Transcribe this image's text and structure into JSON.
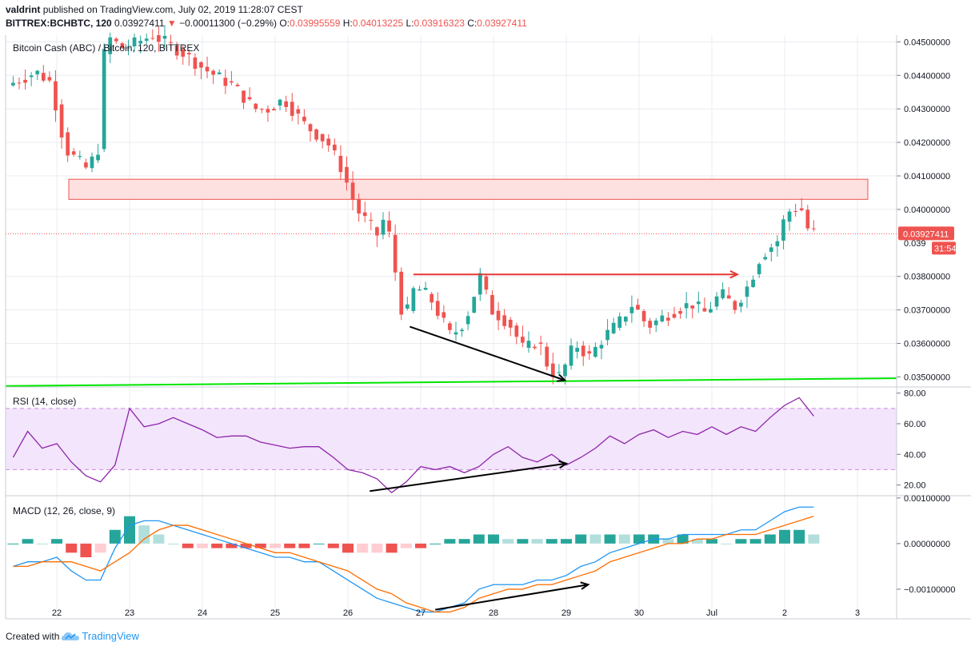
{
  "header": {
    "user": "valdrint",
    "published_text": "published on TradingView.com, July 02, 2019 11:28:07 CEST",
    "symbol": "BITTREX:BCHBTC, 120",
    "last_price": "0.03927411",
    "change": "−0.00011300 (−0.29%)",
    "ohlc": {
      "o_label": "O:",
      "o_value": "0.03995559",
      "h_label": "H:",
      "h_value": "0.04013225",
      "l_label": "L:",
      "l_value": "0.03916323",
      "c_label": "C:",
      "c_value": "0.03927411"
    }
  },
  "colors": {
    "up": "#26a69a",
    "down": "#ef5350",
    "grid": "#e9ecf1",
    "rsi_band": "#f3e5fb",
    "rsi_line": "#8e24aa",
    "macd_line": "#2196f3",
    "signal_line": "#ff6d00",
    "support": "#00e600",
    "resistance_zone": "#fde0e0",
    "price_tag": "#ef5350"
  },
  "chart_data": [
    {
      "type": "candlestick",
      "title": "Bitcoin Cash (ABC) / Bitcoin, 120, BITTREX",
      "y_ticks": [
        "0.04500000",
        "0.04400000",
        "0.04300000",
        "0.04200000",
        "0.04100000",
        "0.04000000",
        "0.03800000",
        "0.03700000",
        "0.03600000",
        "0.03500000"
      ],
      "ylim": [
        0.0347,
        0.0452
      ],
      "x_ticks": [
        "22",
        "23",
        "24",
        "25",
        "26",
        "27",
        "28",
        "29",
        "30",
        "Jul",
        "2",
        "3"
      ],
      "last_price_tag": "0.03927411",
      "countdown_tag": "31:54",
      "price_partial_tick": "0.039",
      "resistance_zone": {
        "from": 0.0403,
        "to": 0.0409
      },
      "support_line": {
        "start": 0.03473,
        "end": 0.03496
      },
      "horizontal_arrow": {
        "price": 0.03806,
        "from_day": 26.9,
        "to_day": 31.35
      },
      "down_arrow": {
        "from": [
          26.85,
          0.0365
        ],
        "to": [
          28.98,
          0.0349
        ]
      },
      "candles": []
    },
    {
      "type": "line",
      "title": "RSI (14, close)",
      "y_ticks": [
        "80.00",
        "60.00",
        "40.00",
        "20.00"
      ],
      "ylim": [
        13,
        84
      ],
      "band": [
        30,
        70
      ],
      "x_days": [
        21.4,
        21.6,
        21.8,
        22.0,
        22.2,
        22.4,
        22.6,
        22.8,
        23.0,
        23.2,
        23.4,
        23.6,
        23.8,
        24.0,
        24.2,
        24.4,
        24.6,
        24.8,
        25.0,
        25.2,
        25.4,
        25.6,
        25.8,
        26.0,
        26.2,
        26.4,
        26.6,
        26.8,
        27.0,
        27.2,
        27.4,
        27.6,
        27.8,
        28.0,
        28.2,
        28.4,
        28.6,
        28.8,
        29.0,
        29.2,
        29.4,
        29.6,
        29.8,
        30.0,
        30.2,
        30.4,
        30.6,
        30.8,
        31.0,
        31.2,
        31.4,
        31.6,
        31.8,
        32.0,
        32.2,
        32.4
      ],
      "values": [
        38,
        55,
        44,
        47,
        35,
        26,
        22,
        33,
        70,
        58,
        60,
        64,
        60,
        56,
        51,
        52,
        52,
        48,
        46,
        44,
        45,
        45,
        38,
        30,
        28,
        24,
        15,
        22,
        32,
        30,
        32,
        28,
        32,
        40,
        45,
        38,
        35,
        40,
        33,
        38,
        44,
        52,
        47,
        53,
        56,
        51,
        55,
        53,
        58,
        53,
        58,
        55,
        64,
        72,
        77,
        65
      ],
      "trend_arrow": {
        "from": [
          26.3,
          16
        ],
        "to": [
          29.0,
          34
        ]
      }
    },
    {
      "type": "line",
      "title": "MACD (12, 26, close, 9)",
      "y_ticks": [
        "0.00100000",
        "0.00000000",
        "−0.00100000"
      ],
      "ylim": [
        -0.00165,
        0.00105
      ],
      "x_days": [
        21.4,
        21.6,
        21.8,
        22.0,
        22.2,
        22.4,
        22.6,
        22.8,
        23.0,
        23.2,
        23.4,
        23.6,
        23.8,
        24.0,
        24.2,
        24.4,
        24.6,
        24.8,
        25.0,
        25.2,
        25.4,
        25.6,
        25.8,
        26.0,
        26.2,
        26.4,
        26.6,
        26.8,
        27.0,
        27.2,
        27.4,
        27.6,
        27.8,
        28.0,
        28.2,
        28.4,
        28.6,
        28.8,
        29.0,
        29.2,
        29.4,
        29.6,
        29.8,
        30.0,
        30.2,
        30.4,
        30.6,
        30.8,
        31.0,
        31.2,
        31.4,
        31.6,
        31.8,
        32.0,
        32.2,
        32.4
      ],
      "series": [
        {
          "name": "MACD",
          "values": [
            -0.0005,
            -0.0004,
            -0.0004,
            -0.0003,
            -0.0006,
            -0.0008,
            -0.0008,
            -0.0001,
            0.0004,
            0.0005,
            0.0005,
            0.0004,
            0.0003,
            0.0002,
            0.0001,
            0.0,
            -0.0001,
            -0.0002,
            -0.0003,
            -0.0003,
            -0.0004,
            -0.0004,
            -0.0006,
            -0.0008,
            -0.001,
            -0.0012,
            -0.0013,
            -0.0014,
            -0.0015,
            -0.0015,
            -0.0014,
            -0.0013,
            -0.001,
            -0.0009,
            -0.0009,
            -0.0009,
            -0.0008,
            -0.0008,
            -0.0007,
            -0.0005,
            -0.0004,
            -0.0002,
            -0.0001,
            0.0,
            0.0001,
            0.0001,
            0.0002,
            0.0002,
            0.0002,
            0.0002,
            0.0003,
            0.0003,
            0.0005,
            0.0007,
            0.0008,
            0.0008
          ]
        },
        {
          "name": "Signal",
          "values": [
            -0.0005,
            -0.0005,
            -0.0004,
            -0.0004,
            -0.0004,
            -0.0005,
            -0.0006,
            -0.0004,
            -0.0002,
            0.0001,
            0.0003,
            0.0004,
            0.0004,
            0.0003,
            0.0002,
            0.0001,
            0.0,
            -0.0001,
            -0.0002,
            -0.0002,
            -0.0003,
            -0.0004,
            -0.0005,
            -0.0006,
            -0.0008,
            -0.001,
            -0.0011,
            -0.0013,
            -0.0014,
            -0.0015,
            -0.0015,
            -0.0014,
            -0.0012,
            -0.0011,
            -0.001,
            -0.001,
            -0.0009,
            -0.0009,
            -0.0008,
            -0.0007,
            -0.0006,
            -0.0004,
            -0.0003,
            -0.0002,
            -0.0001,
            0.0,
            0.0,
            0.0001,
            0.0001,
            0.0002,
            0.0002,
            0.0002,
            0.0003,
            0.0004,
            0.0005,
            0.0006
          ]
        }
      ],
      "trend_arrow": {
        "from": [
          27.2,
          -0.00145
        ],
        "to": [
          29.3,
          -0.0009
        ]
      }
    }
  ],
  "footer": {
    "created_with": "Created with",
    "brand": "TradingView"
  }
}
